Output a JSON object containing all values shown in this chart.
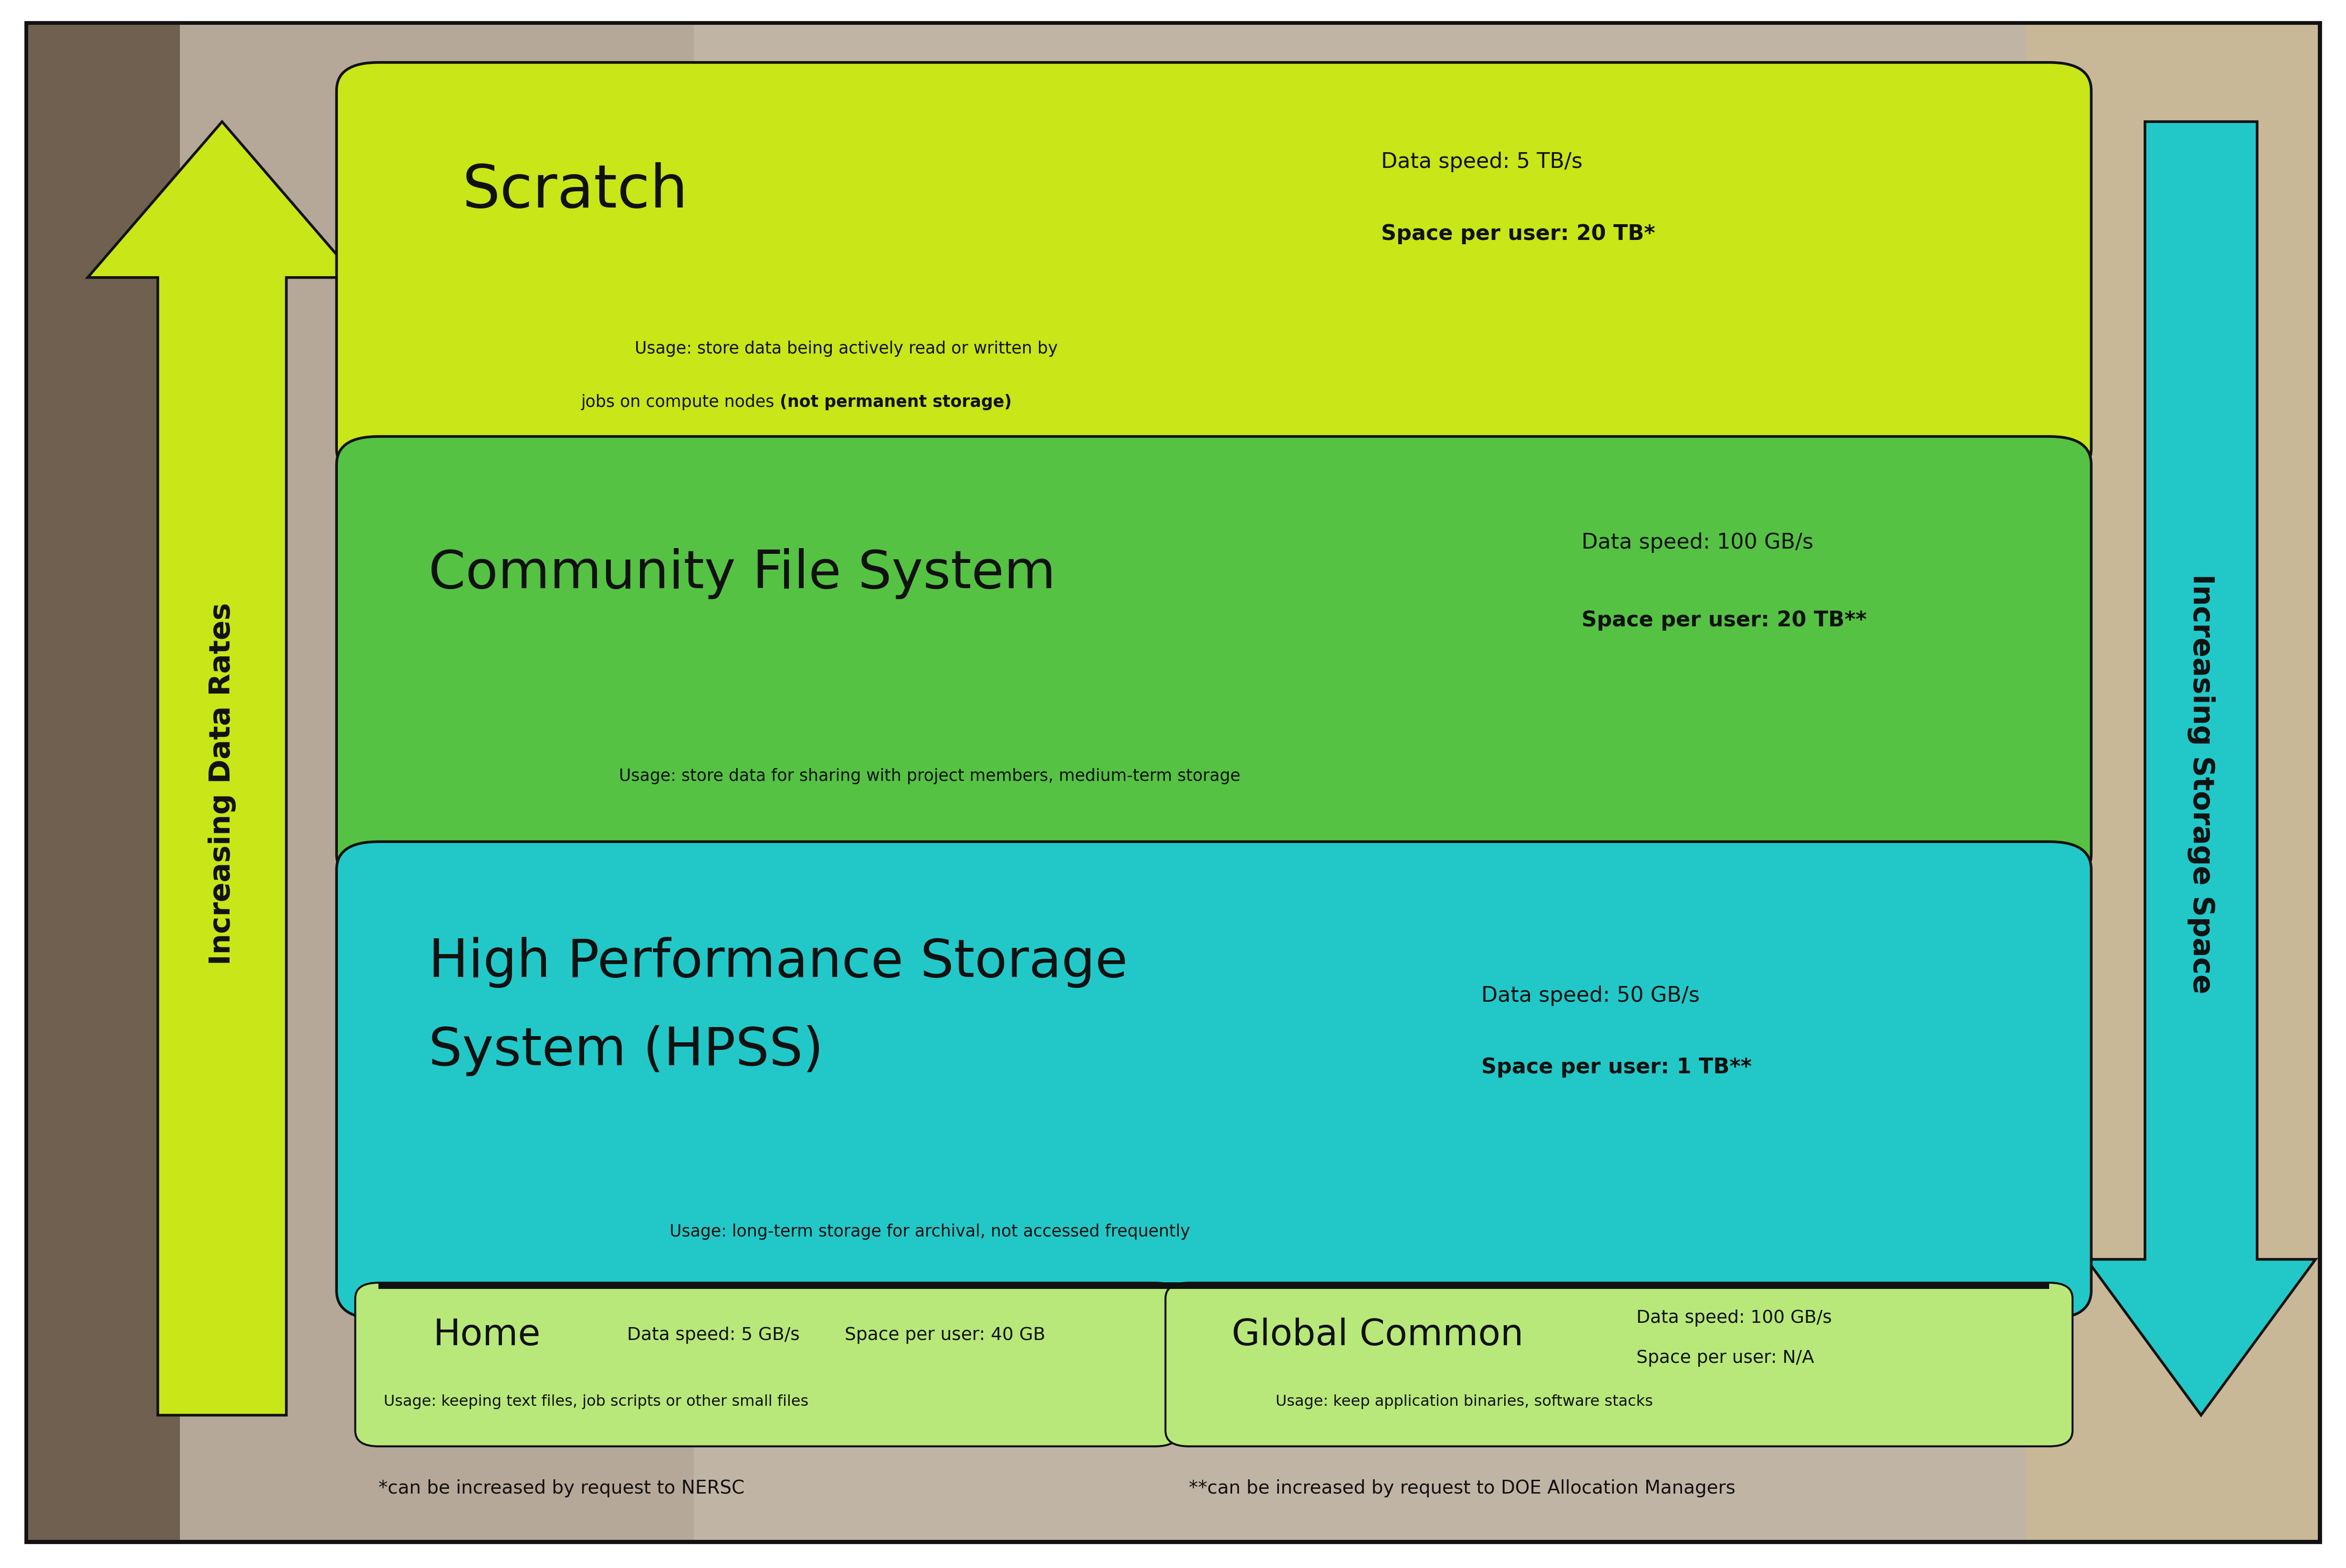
{
  "bg_color": "#b8ad9e",
  "border_color": "#1a1a1a",
  "scratch_color": "#c8e618",
  "cfs_color": "#55c244",
  "hpss_color": "#22c8c8",
  "home_color": "#b8e87a",
  "gc_color": "#b8e87a",
  "arrow_up_color": "#c8e618",
  "arrow_down_color": "#22c8c8",
  "scratch_title": "Scratch",
  "scratch_speed": "Data speed: 5 TB/s",
  "scratch_space": "Space per user: 20 TB*",
  "scratch_usage1": "Usage: store data being actively read or written by",
  "scratch_usage2_plain": "jobs on compute nodes ",
  "scratch_usage2_bold": "(not permanent storage)",
  "cfs_title": "Community File System",
  "cfs_speed": "Data speed: 100 GB/s",
  "cfs_space": "Space per user: 20 TB**",
  "cfs_usage": "Usage: store data for sharing with project members, medium-term storage",
  "hpss_title1": "High Performance Storage",
  "hpss_title2": "System (HPSS)",
  "hpss_speed": "Data speed: 50 GB/s",
  "hpss_space": "Space per user: 1 TB**",
  "hpss_usage": "Usage: long-term storage for archival, not accessed frequently",
  "home_title": "Home",
  "home_speed": "Data speed: 5 GB/s",
  "home_space": "Space per user: 40 GB",
  "home_usage": "Usage: keeping text files, job scripts or other small files",
  "gc_title": "Global Common",
  "gc_speed": "Data speed: 100 GB/s",
  "gc_space": "Space per user: N/A",
  "gc_usage": "Usage: keep application binaries, software stacks",
  "footnote_left": "*can be increased by request to NERSC",
  "footnote_right": "**can be increased by request to DOE Allocation Managers",
  "arrow_up_label": "Increasing Data Rates",
  "arrow_down_label": "Increasing Storage Space"
}
